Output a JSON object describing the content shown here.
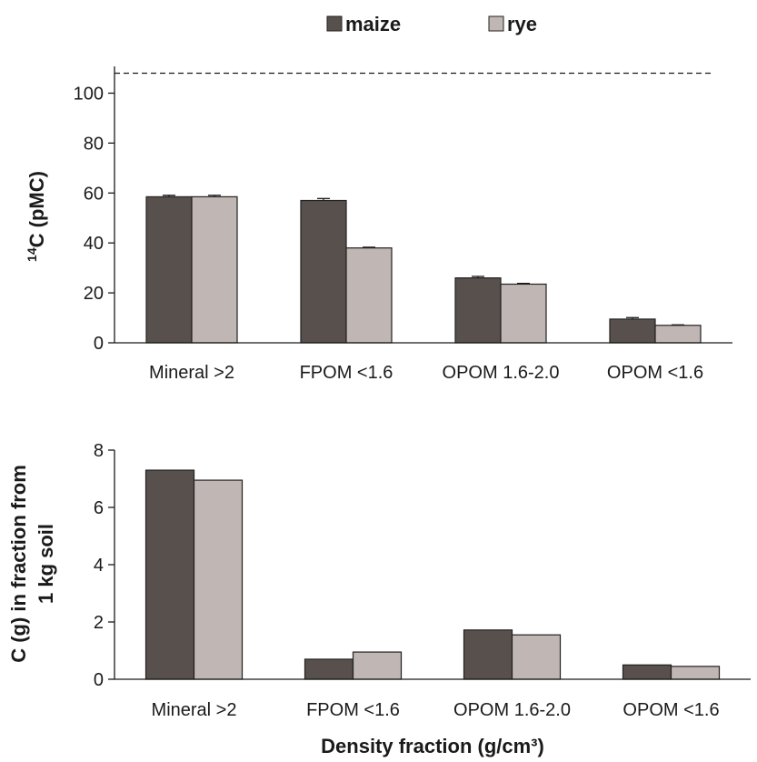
{
  "legend": [
    {
      "name": "maize",
      "color": "#58504c"
    },
    {
      "name": "rye",
      "color": "#c0b6b4"
    }
  ],
  "chart_data": [
    {
      "type": "bar",
      "categories": [
        "Mineral >2",
        "FPOM <1.6",
        "OPOM 1.6-2.0",
        "OPOM <1.6"
      ],
      "series": [
        {
          "name": "maize",
          "values": [
            58.5,
            57.0,
            26.0,
            9.5
          ],
          "errors": [
            0.6,
            0.8,
            0.6,
            0.6
          ]
        },
        {
          "name": "rye",
          "values": [
            58.5,
            38.0,
            23.5,
            7.0
          ],
          "errors": [
            0.6,
            0.3,
            0.3,
            0.2
          ]
        }
      ],
      "reference_line": {
        "value": 108,
        "style": "dashed"
      },
      "ylabel_main": "C (pMC)",
      "ylabel_sup": "14",
      "ylim": [
        0,
        110
      ],
      "yticks": [
        0,
        20,
        40,
        60,
        80,
        100
      ],
      "grid": false,
      "legend_position": "top-center"
    },
    {
      "type": "bar",
      "categories": [
        "Mineral >2",
        "FPOM <1.6",
        "OPOM 1.6-2.0",
        "OPOM <1.6"
      ],
      "series": [
        {
          "name": "maize",
          "values": [
            7.3,
            0.7,
            1.72,
            0.5
          ]
        },
        {
          "name": "rye",
          "values": [
            6.95,
            0.95,
            1.55,
            0.45
          ]
        }
      ],
      "ylabel_lines": [
        "C (g) in fraction from",
        "1 kg soil"
      ],
      "xlabel": "Density fraction (g/cm³)",
      "ylim": [
        0,
        8
      ],
      "yticks": [
        0,
        2,
        4,
        6,
        8
      ],
      "grid": false
    }
  ]
}
